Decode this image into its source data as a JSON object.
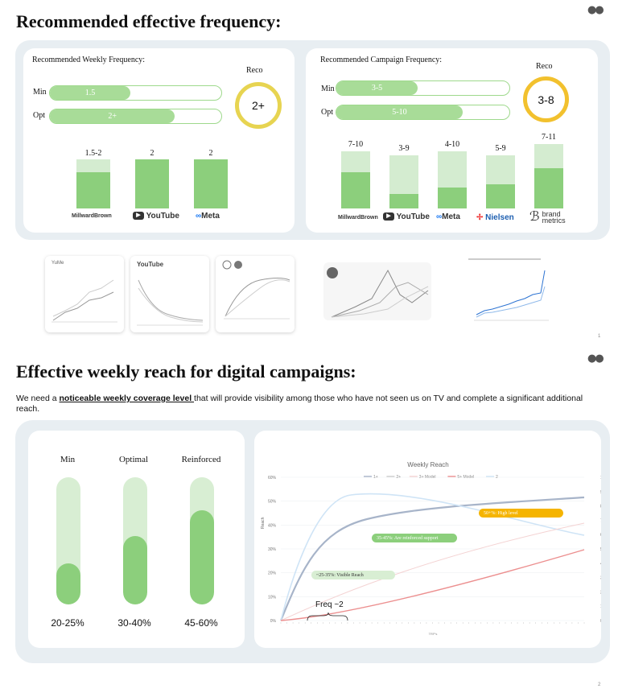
{
  "slide1": {
    "title": "Recommended effective frequency:",
    "weekly": {
      "title": "Recommended Weekly Frequency:",
      "min_label": "Min",
      "opt_label": "Opt",
      "min_value": "1.5",
      "opt_value": "2+",
      "min_fill": 0.47,
      "opt_fill": 0.73,
      "reco_label": "Reco",
      "reco_value": "2+",
      "bars": [
        {
          "label": "1.5-2",
          "brand": "MillwardBrown",
          "total": 1.0,
          "fill": 0.73
        },
        {
          "label": "2",
          "brand": "YouTube",
          "total": 1.0,
          "fill": 1.0
        },
        {
          "label": "2",
          "brand": "Meta",
          "total": 1.0,
          "fill": 1.0
        }
      ]
    },
    "campaign": {
      "title": "Recommended Campaign Frequency:",
      "min_label": "Min",
      "opt_label": "Opt",
      "min_value": "3-5",
      "opt_value": "5-10",
      "min_fill": 0.47,
      "opt_fill": 0.73,
      "reco_label": "Reco",
      "reco_value": "3-8",
      "bars": [
        {
          "label": "7-10",
          "brand": "MillwardBrown",
          "total": 0.89,
          "fill": 0.63
        },
        {
          "label": "3-9",
          "brand": "YouTube",
          "total": 0.82,
          "fill": 0.27
        },
        {
          "label": "4-10",
          "brand": "Meta",
          "total": 0.89,
          "fill": 0.36
        },
        {
          "label": "5-9",
          "brand": "Nielsen",
          "total": 0.82,
          "fill": 0.46
        },
        {
          "label": "7-11",
          "brand": "brand metrics",
          "total": 1.0,
          "fill": 0.62
        }
      ]
    },
    "thumbs": {
      "youtube": "YouTube",
      "page": "1"
    }
  },
  "slide2": {
    "title": "Effective weekly reach for digital campaigns:",
    "intro_pre": "We need a ",
    "intro_bold": "noticeable weekly coverage level ",
    "intro_post": "that will provide visibility among those who have not seen us on TV and complete a significant additional reach.",
    "coverage": [
      {
        "label": "Min",
        "value": "20-25%",
        "fill": 0.38
      },
      {
        "label": "Optimal",
        "value": "30-40%",
        "fill": 0.58
      },
      {
        "label": "Reinforced",
        "value": "45-60%",
        "fill": 0.84
      }
    ],
    "chart": {
      "title": "Weekly Reach",
      "legend": [
        "1+",
        "2+",
        "3+ Model",
        "5+ Model",
        "2"
      ],
      "y_left": [
        "0%",
        "10%",
        "20%",
        "30%",
        "40%",
        "50%",
        "60%"
      ],
      "y_right": [
        "0%",
        "1%",
        "2%",
        "3%",
        "4%",
        "5%",
        "6%",
        "7%",
        "8%",
        "9%",
        "10%"
      ],
      "ylabel": "Reach",
      "xlabel": "TRP's",
      "tags": {
        "high": "50+%: High level",
        "reinforced": "35-45%: Are reinforced support",
        "visible": "~25-35%: Visible Reach"
      },
      "freq": "Freq ~2"
    },
    "page": "2"
  },
  "colors": {
    "panel": "#e8eef2",
    "green_fill": "#8ccf7c",
    "green_light": "#d4ecd0",
    "reco_ring": "#e7d451",
    "high_tag": "#f5b400"
  }
}
